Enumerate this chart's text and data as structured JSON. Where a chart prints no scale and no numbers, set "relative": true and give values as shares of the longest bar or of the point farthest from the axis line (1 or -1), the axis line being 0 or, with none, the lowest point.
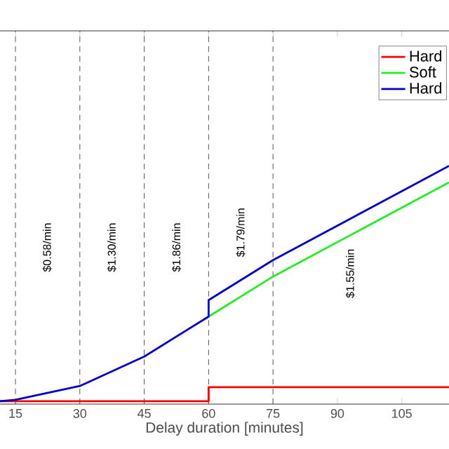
{
  "chart_data": {
    "type": "line",
    "xlabel": "Delay duration [minutes]",
    "relative": true,
    "xlim": [
      11.4,
      116
    ],
    "xticks": [
      15,
      30,
      45,
      60,
      75,
      90,
      105
    ],
    "legend": "top right",
    "series": [
      {
        "name": "Hard",
        "color": "#ff0000",
        "x": [
          11.4,
          60,
          60,
          116
        ],
        "values": [
          0,
          0,
          0.06,
          0.06
        ]
      },
      {
        "name": "Soft",
        "color": "#22ee22",
        "x": [
          60,
          75,
          116
        ],
        "values": [
          0.36,
          0.53,
          0.93
        ]
      },
      {
        "name": "Hard",
        "color": "#0000cc",
        "x": [
          11.4,
          15,
          30,
          45,
          60,
          60,
          75,
          116
        ],
        "values": [
          0,
          0.006,
          0.065,
          0.19,
          0.36,
          0.43,
          0.6,
          1.0
        ]
      }
    ],
    "ref_lines": [
      {
        "axis": "x",
        "value": 15,
        "color": "#555555",
        "line_style": "dashed"
      },
      {
        "axis": "x",
        "value": 30,
        "color": "#555555",
        "line_style": "dashed"
      },
      {
        "axis": "x",
        "value": 45,
        "color": "#555555",
        "line_style": "dashed"
      },
      {
        "axis": "x",
        "value": 60,
        "color": "#555555",
        "line_style": "dashed"
      },
      {
        "axis": "x",
        "value": 75,
        "color": "#555555",
        "line_style": "dashed"
      }
    ],
    "annotations": [
      "$0.58/min",
      "$1.30/min",
      "$1.86/min",
      "$1.79/min",
      "$1.55/min"
    ]
  }
}
